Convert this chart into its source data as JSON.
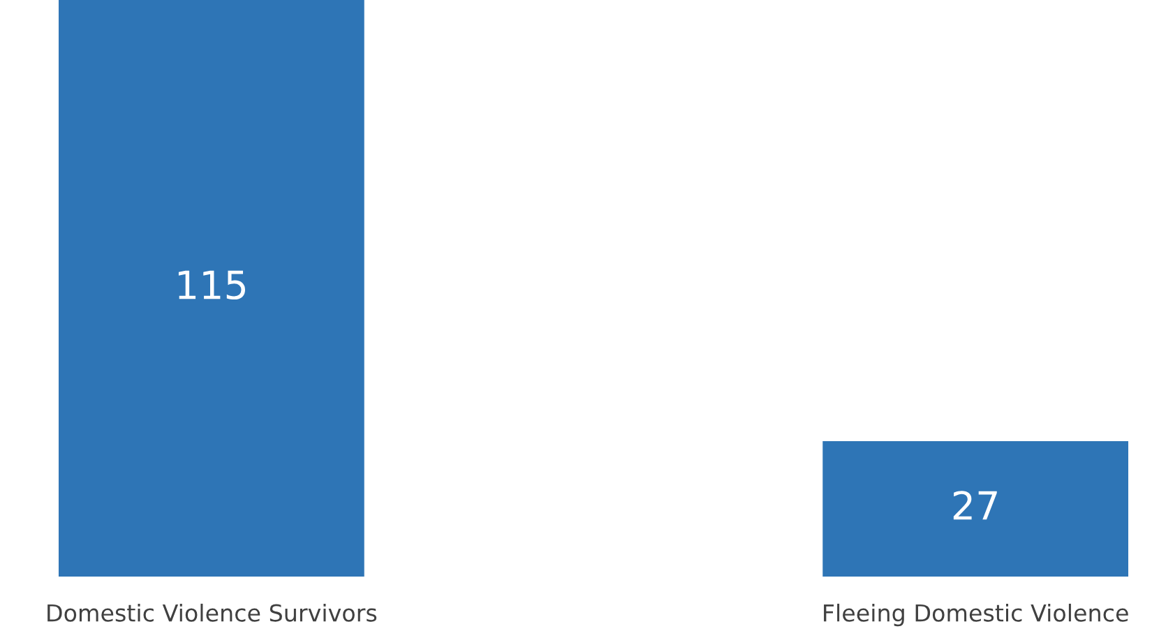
{
  "chart_data": {
    "type": "bar",
    "categories": [
      "Domestic Violence Survivors",
      "Fleeing Domestic Violence"
    ],
    "values": [
      115,
      27
    ],
    "color": "#2e75b6",
    "data_labels": true,
    "grid": false
  }
}
